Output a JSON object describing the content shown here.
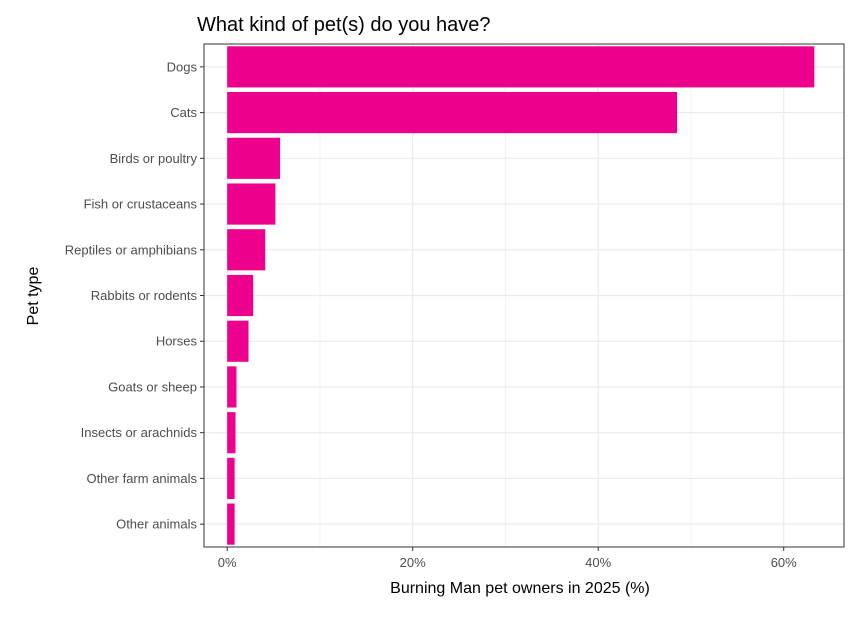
{
  "chart_data": {
    "type": "bar",
    "orientation": "horizontal",
    "title": "What kind of pet(s) do you have?",
    "xlabel": "Burning Man pet owners in 2025 (%)",
    "ylabel": "Pet type",
    "categories": [
      "Dogs",
      "Cats",
      "Birds or poultry",
      "Fish or crustaceans",
      "Reptiles or amphibians",
      "Rabbits or rodents",
      "Horses",
      "Goats or sheep",
      "Insects or arachnids",
      "Other farm animals",
      "Other animals"
    ],
    "values": [
      63.3,
      48.5,
      5.7,
      5.2,
      4.1,
      2.8,
      2.3,
      1.0,
      0.9,
      0.8,
      0.8
    ],
    "xlim": [
      -2.5,
      66.5
    ],
    "x_ticks": [
      0,
      20,
      40,
      60
    ],
    "x_tick_labels": [
      "0%",
      "20%",
      "40%",
      "60%"
    ],
    "grid": true,
    "bar_color": "#EC008C",
    "panel_border_color": "#333333",
    "grid_color": "#ebebeb"
  }
}
